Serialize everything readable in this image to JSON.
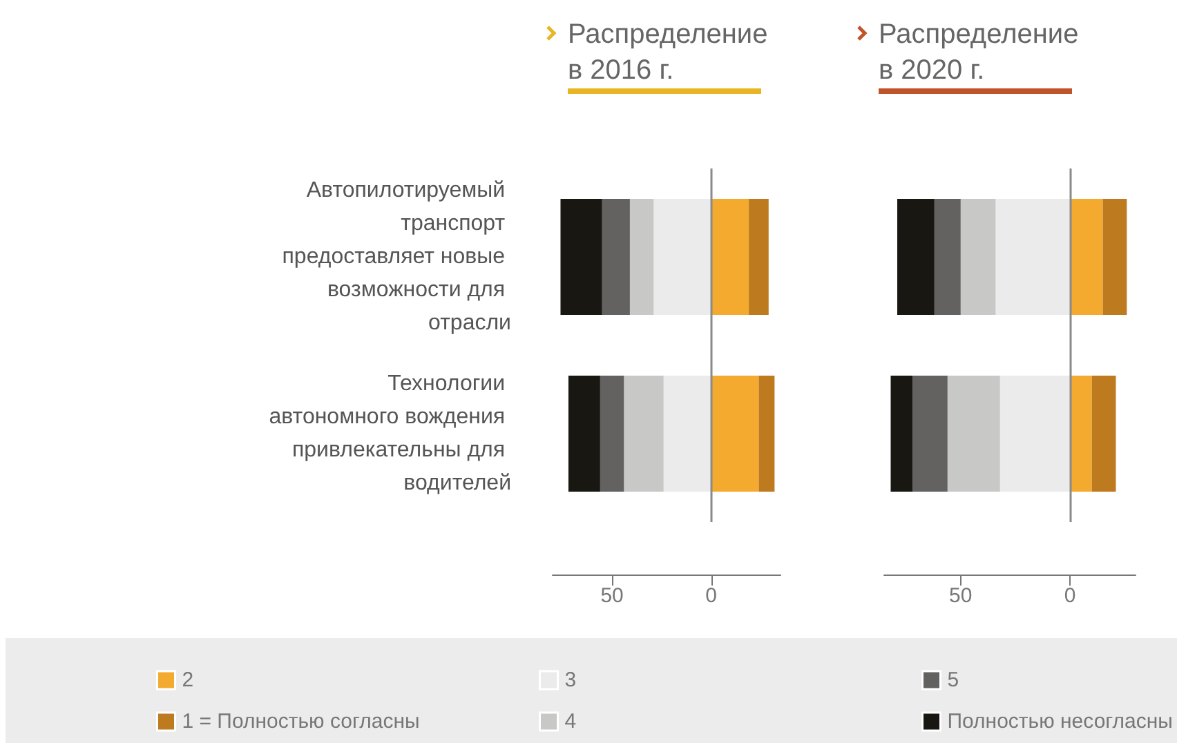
{
  "chart_data": [
    {
      "type": "bar",
      "orientation": "horizontal",
      "stacked": true,
      "title": "Распределение в 2016 г.",
      "categories": [
        "Автопилотируемый транспорт предоставляет новые возможности для отрасли",
        "Технологии автономного вождения привлекательны для водителей"
      ],
      "series": [
        {
          "name": "2",
          "color": "#f4aa2e",
          "values": [
            19,
            24
          ]
        },
        {
          "name": "1 = Полностью согласны",
          "color": "#bd7a1f",
          "values": [
            10,
            8
          ]
        },
        {
          "name": "3",
          "color": "#ebebeb",
          "values": [
            -29,
            -24
          ]
        },
        {
          "name": "4",
          "color": "#c8c8c6",
          "values": [
            -12,
            -20
          ]
        },
        {
          "name": "5",
          "color": "#636260",
          "values": [
            -14,
            -12
          ]
        },
        {
          "name": "Полностью несогласны",
          "color": "#181712",
          "values": [
            -21,
            -16
          ]
        }
      ],
      "xlim": [
        -80,
        35
      ],
      "xticks": [
        {
          "value": -50,
          "label": "50"
        },
        0
      ],
      "ref_lines": [
        {
          "axis": "x",
          "value": 0,
          "color": "#8a8a8a"
        }
      ],
      "grid": false,
      "legend": "bottom"
    },
    {
      "type": "bar",
      "orientation": "horizontal",
      "stacked": true,
      "title": "Распределение в 2020 г.",
      "categories": [
        null,
        null
      ],
      "series": [
        {
          "color": "#f4aa2e",
          "values": [
            15,
            10
          ]
        },
        {
          "color": "#bd7a1f",
          "values": [
            11,
            11
          ]
        },
        {
          "color": "#ebebeb",
          "values": [
            -34,
            -32
          ]
        },
        {
          "color": "#c8c8c6",
          "values": [
            -16,
            -24
          ]
        },
        {
          "color": "#636260",
          "values": [
            -12,
            -16
          ]
        },
        {
          "color": "#181712",
          "values": [
            -17,
            -10
          ]
        }
      ],
      "xlim": [
        -85,
        30
      ],
      "xticks": [
        {
          "value": -50,
          "label": "50"
        },
        0
      ],
      "ref_lines": [
        {
          "axis": "x",
          "value": 0,
          "color": "#8a8a8a"
        }
      ],
      "grid": false,
      "legend": false,
      "tick_labels": "x"
    }
  ]
}
